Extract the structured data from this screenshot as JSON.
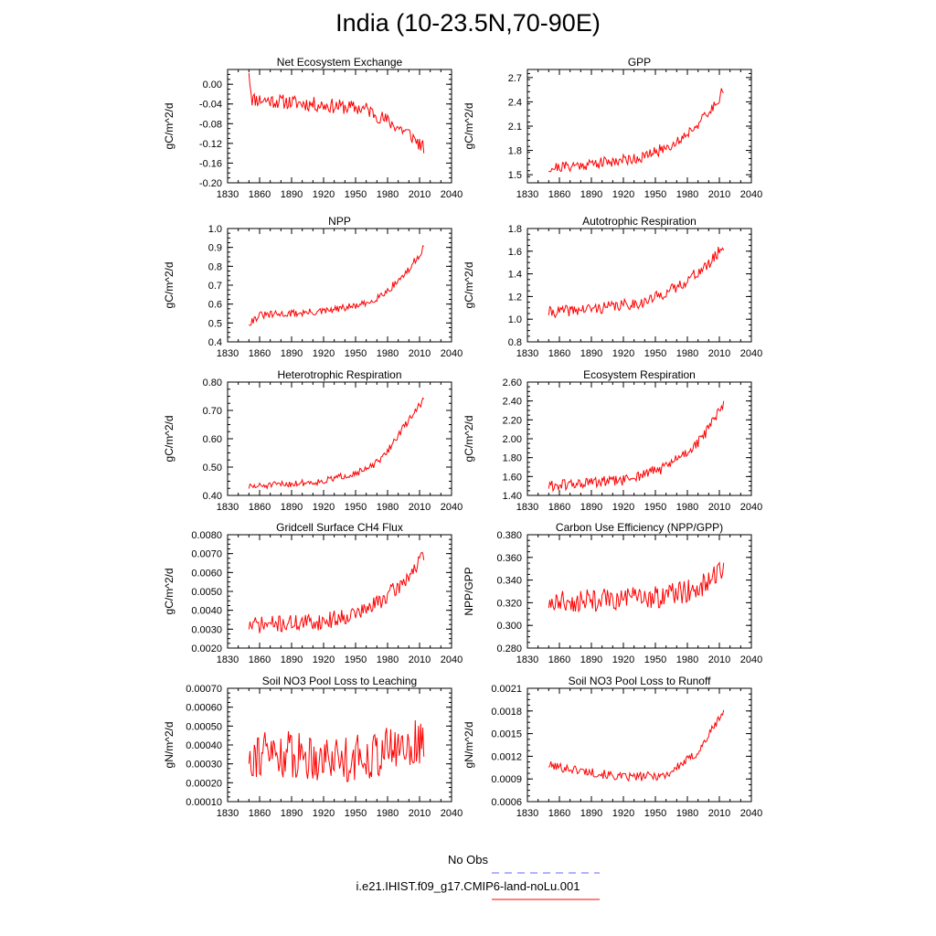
{
  "page": {
    "title": "India (10-23.5N,70-90E)"
  },
  "legend": {
    "items": [
      {
        "label": "No Obs",
        "color": "#6666ff",
        "dash": true
      },
      {
        "label": "i.e21.IHIST.f09_g17.CMIP6-land-noLu.001",
        "color": "#ff0000",
        "dash": false
      }
    ]
  },
  "colors": {
    "series": "#ff0000"
  },
  "chart_data": [
    {
      "type": "line",
      "title": "Net Ecosystem Exchange",
      "xlabel": "",
      "ylabel": "gC/m^2/d",
      "xlim": [
        1830,
        2040
      ],
      "ylim": [
        -0.2,
        0.03
      ],
      "xticks": [
        "1830",
        "1860",
        "1890",
        "1920",
        "1950",
        "1980",
        "2010",
        "2040"
      ],
      "yticks": [
        "0.00",
        "-0.04",
        "-0.08",
        "-0.12",
        "-0.16",
        "-0.20"
      ],
      "series": [
        {
          "x": [
            1850,
            2014
          ],
          "start": 0.023,
          "end": -0.14,
          "base": [
            [
              1850,
              0.02
            ],
            [
              1853,
              -0.03
            ],
            [
              1960,
              -0.05
            ],
            [
              2000,
              -0.1
            ],
            [
              2014,
              -0.13
            ]
          ],
          "noise": 0.015,
          "seed": 11
        }
      ]
    },
    {
      "type": "line",
      "title": "GPP",
      "xlabel": "",
      "ylabel": "gC/m^2/d",
      "xlim": [
        1830,
        2040
      ],
      "ylim": [
        1.4,
        2.8
      ],
      "xticks": [
        "1830",
        "1860",
        "1890",
        "1920",
        "1950",
        "1980",
        "2010",
        "2040"
      ],
      "yticks": [
        "1.5",
        "1.8",
        "2.1",
        "2.4",
        "2.7"
      ],
      "series": [
        {
          "x": [
            1850,
            2014
          ],
          "base": [
            [
              1850,
              1.58
            ],
            [
              1900,
              1.65
            ],
            [
              1940,
              1.72
            ],
            [
              1970,
              1.9
            ],
            [
              2000,
              2.25
            ],
            [
              2014,
              2.55
            ]
          ],
          "noise": 0.07,
          "seed": 21
        }
      ]
    },
    {
      "type": "line",
      "title": "NPP",
      "xlabel": "",
      "ylabel": "gC/m^2/d",
      "xlim": [
        1830,
        2040
      ],
      "ylim": [
        0.4,
        1.0
      ],
      "xticks": [
        "1830",
        "1860",
        "1890",
        "1920",
        "1950",
        "1980",
        "2010",
        "2040"
      ],
      "yticks": [
        "0.4",
        "0.5",
        "0.6",
        "0.7",
        "0.8",
        "0.9",
        "1.0"
      ],
      "series": [
        {
          "x": [
            1850,
            2014
          ],
          "base": [
            [
              1850,
              0.5
            ],
            [
              1860,
              0.54
            ],
            [
              1920,
              0.56
            ],
            [
              1960,
              0.6
            ],
            [
              1980,
              0.67
            ],
            [
              2000,
              0.78
            ],
            [
              2014,
              0.9
            ]
          ],
          "noise": 0.02,
          "seed": 31
        }
      ]
    },
    {
      "type": "line",
      "title": "Autotrophic Respiration",
      "xlabel": "",
      "ylabel": "gC/m^2/d",
      "xlim": [
        1830,
        2040
      ],
      "ylim": [
        0.8,
        1.8
      ],
      "xticks": [
        "1830",
        "1860",
        "1890",
        "1920",
        "1950",
        "1980",
        "2010",
        "2040"
      ],
      "yticks": [
        "0.8",
        "1.0",
        "1.2",
        "1.4",
        "1.6",
        "1.8"
      ],
      "series": [
        {
          "x": [
            1850,
            2014
          ],
          "base": [
            [
              1850,
              1.06
            ],
            [
              1900,
              1.1
            ],
            [
              1940,
              1.15
            ],
            [
              1970,
              1.28
            ],
            [
              2000,
              1.48
            ],
            [
              2014,
              1.65
            ]
          ],
          "noise": 0.05,
          "seed": 41
        }
      ]
    },
    {
      "type": "line",
      "title": "Heterotrophic Respiration",
      "xlabel": "",
      "ylabel": "gC/m^2/d",
      "xlim": [
        1830,
        2040
      ],
      "ylim": [
        0.4,
        0.8
      ],
      "xticks": [
        "1830",
        "1860",
        "1890",
        "1920",
        "1950",
        "1980",
        "2010",
        "2040"
      ],
      "yticks": [
        "0.40",
        "0.50",
        "0.60",
        "0.70",
        "0.80"
      ],
      "series": [
        {
          "x": [
            1850,
            2014
          ],
          "base": [
            [
              1850,
              0.43
            ],
            [
              1920,
              0.45
            ],
            [
              1960,
              0.49
            ],
            [
              1975,
              0.53
            ],
            [
              1995,
              0.64
            ],
            [
              2014,
              0.74
            ]
          ],
          "noise": 0.012,
          "seed": 51
        }
      ]
    },
    {
      "type": "line",
      "title": "Ecosystem Respiration",
      "xlabel": "",
      "ylabel": "gC/m^2/d",
      "xlim": [
        1830,
        2040
      ],
      "ylim": [
        1.4,
        2.6
      ],
      "xticks": [
        "1830",
        "1860",
        "1890",
        "1920",
        "1950",
        "1980",
        "2010",
        "2040"
      ],
      "yticks": [
        "1.40",
        "1.60",
        "1.80",
        "2.00",
        "2.20",
        "2.40",
        "2.60"
      ],
      "series": [
        {
          "x": [
            1850,
            2014
          ],
          "base": [
            [
              1850,
              1.5
            ],
            [
              1920,
              1.56
            ],
            [
              1960,
              1.7
            ],
            [
              1990,
              1.95
            ],
            [
              2014,
              2.35
            ]
          ],
          "noise": 0.06,
          "seed": 61
        }
      ]
    },
    {
      "type": "line",
      "title": "Gridcell Surface CH4 Flux",
      "xlabel": "",
      "ylabel": "gC/m^2/d",
      "xlim": [
        1830,
        2040
      ],
      "ylim": [
        0.002,
        0.008
      ],
      "xticks": [
        "1830",
        "1860",
        "1890",
        "1920",
        "1950",
        "1980",
        "2010",
        "2040"
      ],
      "yticks": [
        "0.0020",
        "0.0030",
        "0.0040",
        "0.0050",
        "0.0060",
        "0.0070",
        "0.0080"
      ],
      "series": [
        {
          "x": [
            1850,
            2014
          ],
          "base": [
            [
              1850,
              0.0032
            ],
            [
              1920,
              0.0034
            ],
            [
              1960,
              0.004
            ],
            [
              1990,
              0.0052
            ],
            [
              2014,
              0.0068
            ]
          ],
          "noise": 0.00045,
          "seed": 71
        }
      ]
    },
    {
      "type": "line",
      "title": "Carbon Use Efficiency (NPP/GPP)",
      "xlabel": "",
      "ylabel": "NPP/GPP",
      "xlim": [
        1830,
        2040
      ],
      "ylim": [
        0.28,
        0.38
      ],
      "xticks": [
        "1830",
        "1860",
        "1890",
        "1920",
        "1950",
        "1980",
        "2010",
        "2040"
      ],
      "yticks": [
        "0.280",
        "0.300",
        "0.320",
        "0.340",
        "0.360",
        "0.380"
      ],
      "series": [
        {
          "x": [
            1850,
            2014
          ],
          "base": [
            [
              1850,
              0.32
            ],
            [
              1950,
              0.325
            ],
            [
              1990,
              0.332
            ],
            [
              2014,
              0.35
            ]
          ],
          "noise": 0.01,
          "seed": 81
        }
      ]
    },
    {
      "type": "line",
      "title": "Soil NO3 Pool Loss to Leaching",
      "xlabel": "",
      "ylabel": "gN/m^2/d",
      "xlim": [
        1830,
        2040
      ],
      "ylim": [
        0.0001,
        0.0007
      ],
      "xticks": [
        "1830",
        "1860",
        "1890",
        "1920",
        "1950",
        "1980",
        "2010",
        "2040"
      ],
      "yticks": [
        "0.00010",
        "0.00020",
        "0.00030",
        "0.00040",
        "0.00050",
        "0.00060",
        "0.00070"
      ],
      "series": [
        {
          "x": [
            1850,
            2014
          ],
          "base": [
            [
              1850,
              0.00036
            ],
            [
              1950,
              0.00033
            ],
            [
              2014,
              0.00042
            ]
          ],
          "noise": 0.00013,
          "seed": 91
        }
      ]
    },
    {
      "type": "line",
      "title": "Soil NO3 Pool Loss to Runoff",
      "xlabel": "",
      "ylabel": "gN/m^2/d",
      "xlim": [
        1830,
        2040
      ],
      "ylim": [
        0.0006,
        0.0021
      ],
      "xticks": [
        "1830",
        "1860",
        "1890",
        "1920",
        "1950",
        "1980",
        "2010",
        "2040"
      ],
      "yticks": [
        "0.0006",
        "0.0009",
        "0.0012",
        "0.0015",
        "0.0018",
        "0.0021"
      ],
      "series": [
        {
          "x": [
            1850,
            2014
          ],
          "base": [
            [
              1850,
              0.00108
            ],
            [
              1920,
              0.00092
            ],
            [
              1960,
              0.00095
            ],
            [
              1990,
              0.00125
            ],
            [
              2014,
              0.0018
            ]
          ],
          "noise": 6e-05,
          "seed": 101
        }
      ]
    }
  ]
}
